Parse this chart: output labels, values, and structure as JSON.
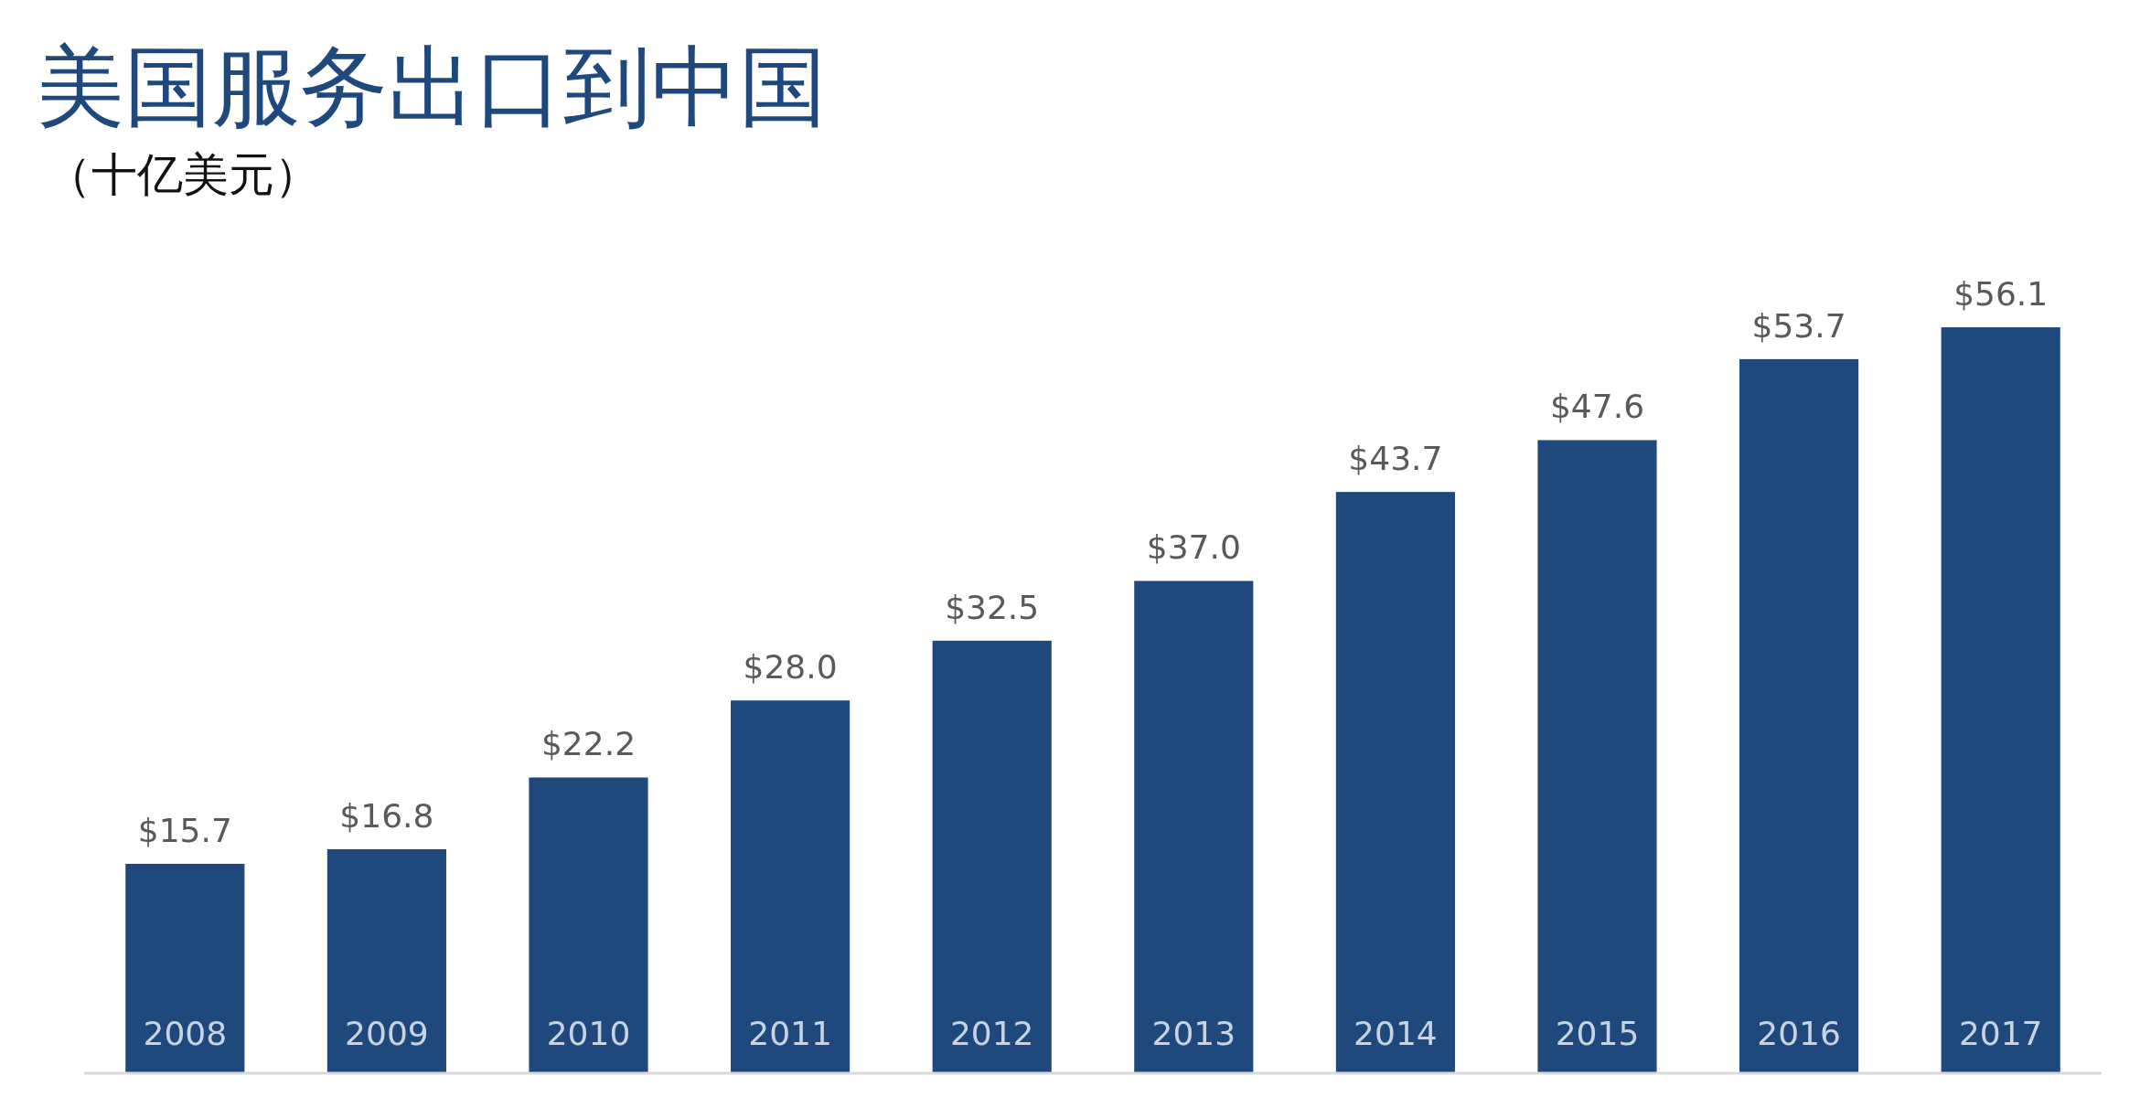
{
  "chart_data": {
    "type": "bar",
    "title": "美国服务出口到中国",
    "subtitle": "（十亿美元）",
    "categories": [
      "2008",
      "2009",
      "2010",
      "2011",
      "2012",
      "2013",
      "2014",
      "2015",
      "2016",
      "2017"
    ],
    "values": [
      15.7,
      16.8,
      22.2,
      28.0,
      32.5,
      37.0,
      43.7,
      47.6,
      53.7,
      56.1
    ],
    "value_labels": [
      "$15.7",
      "$16.8",
      "$22.2",
      "$28.0",
      "$32.5",
      "$37.0",
      "$43.7",
      "$47.6",
      "$53.7",
      "$56.1"
    ],
    "color": "#1f497d"
  }
}
